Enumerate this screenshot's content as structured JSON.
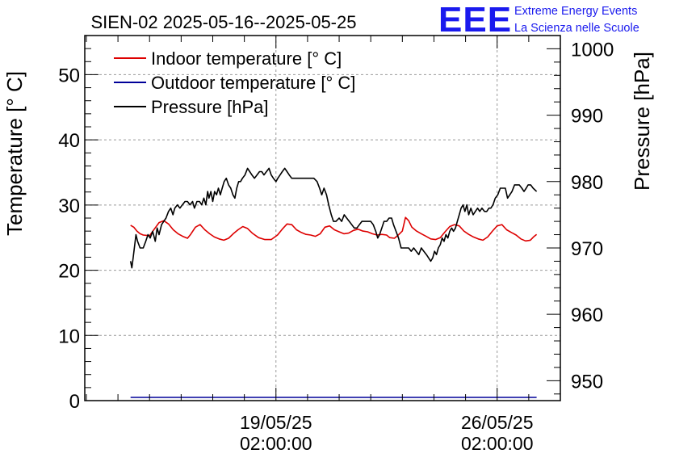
{
  "chart_data": {
    "type": "line",
    "title": "SIEN-02 2025-05-16--2025-05-25",
    "ylabel": "Temperature [° C]",
    "y2label": "Pressure [hPa]",
    "ylim": [
      0,
      56
    ],
    "y2lim": [
      947,
      1002
    ],
    "yticks": [
      0,
      10,
      20,
      30,
      40,
      50
    ],
    "y2ticks": [
      950,
      960,
      970,
      980,
      990,
      1000
    ],
    "xlim": [
      -6.05,
      9.0
    ],
    "xticks": [
      {
        "pos": 0,
        "line1": "19/05/25",
        "line2": "02:00:00"
      },
      {
        "pos": 7,
        "line1": "26/05/25",
        "line2": "02:00:00"
      }
    ],
    "x_unit": "days relative to 19/05/25 02:00:00",
    "grid": true,
    "legend_position": "top-left",
    "series": [
      {
        "name": "Indoor temperature [° C]",
        "axis": "left",
        "color": "#dd0000",
        "points": [
          [
            -4.6,
            26.9
          ],
          [
            -4.5,
            26.6
          ],
          [
            -4.4,
            26.0
          ],
          [
            -4.3,
            25.6
          ],
          [
            -4.2,
            25.4
          ],
          [
            -4.0,
            25.3
          ],
          [
            -3.85,
            26.3
          ],
          [
            -3.7,
            27.3
          ],
          [
            -3.55,
            27.6
          ],
          [
            -3.4,
            27.1
          ],
          [
            -3.25,
            26.2
          ],
          [
            -3.1,
            25.6
          ],
          [
            -2.95,
            25.2
          ],
          [
            -2.8,
            24.9
          ],
          [
            -2.7,
            25.5
          ],
          [
            -2.55,
            26.6
          ],
          [
            -2.4,
            27.0
          ],
          [
            -2.25,
            26.2
          ],
          [
            -2.1,
            25.6
          ],
          [
            -1.95,
            25.1
          ],
          [
            -1.8,
            24.8
          ],
          [
            -1.65,
            24.6
          ],
          [
            -1.5,
            24.9
          ],
          [
            -1.35,
            25.6
          ],
          [
            -1.2,
            26.2
          ],
          [
            -1.05,
            26.7
          ],
          [
            -0.9,
            26.4
          ],
          [
            -0.75,
            25.7
          ],
          [
            -0.55,
            25.0
          ],
          [
            -0.35,
            24.7
          ],
          [
            -0.15,
            24.7
          ],
          [
            0.05,
            25.4
          ],
          [
            0.2,
            26.3
          ],
          [
            0.35,
            27.1
          ],
          [
            0.5,
            27.0
          ],
          [
            0.65,
            26.2
          ],
          [
            0.8,
            25.8
          ],
          [
            0.95,
            25.5
          ],
          [
            1.1,
            25.4
          ],
          [
            1.25,
            25.2
          ],
          [
            1.4,
            25.6
          ],
          [
            1.55,
            26.6
          ],
          [
            1.7,
            26.8
          ],
          [
            1.85,
            26.2
          ],
          [
            2.0,
            25.9
          ],
          [
            2.15,
            25.6
          ],
          [
            2.3,
            25.7
          ],
          [
            2.45,
            26.1
          ],
          [
            2.6,
            26.3
          ],
          [
            2.75,
            26.0
          ],
          [
            2.9,
            25.9
          ],
          [
            3.05,
            25.6
          ],
          [
            3.2,
            25.4
          ],
          [
            3.35,
            25.5
          ],
          [
            3.5,
            25.4
          ],
          [
            3.6,
            25.0
          ],
          [
            3.75,
            24.9
          ],
          [
            3.85,
            25.3
          ],
          [
            4.0,
            26.0
          ],
          [
            4.1,
            28.1
          ],
          [
            4.2,
            27.6
          ],
          [
            4.3,
            26.6
          ],
          [
            4.45,
            26.0
          ],
          [
            4.6,
            25.6
          ],
          [
            4.75,
            25.2
          ],
          [
            4.9,
            24.8
          ],
          [
            5.05,
            24.7
          ],
          [
            5.2,
            25.0
          ],
          [
            5.35,
            25.9
          ],
          [
            5.5,
            26.7
          ],
          [
            5.65,
            27.0
          ],
          [
            5.8,
            26.8
          ],
          [
            5.95,
            26.0
          ],
          [
            6.1,
            25.5
          ],
          [
            6.25,
            25.1
          ],
          [
            6.4,
            24.8
          ],
          [
            6.55,
            24.6
          ],
          [
            6.7,
            25.1
          ],
          [
            6.85,
            26.0
          ],
          [
            7.0,
            26.8
          ],
          [
            7.15,
            27.0
          ],
          [
            7.3,
            26.2
          ],
          [
            7.45,
            25.8
          ],
          [
            7.6,
            25.4
          ],
          [
            7.75,
            24.8
          ],
          [
            7.9,
            24.5
          ],
          [
            8.05,
            24.6
          ],
          [
            8.15,
            25.1
          ],
          [
            8.25,
            25.5
          ]
        ]
      },
      {
        "name": "Outdoor temperature [° C]",
        "axis": "left",
        "color": "#000099",
        "points": [
          [
            -4.6,
            0.5
          ],
          [
            8.25,
            0.5
          ]
        ]
      },
      {
        "name": "Pressure [hPa]",
        "axis": "right",
        "color": "#000000",
        "points": [
          [
            -4.6,
            968.0
          ],
          [
            -4.56,
            967.0
          ],
          [
            -4.52,
            968.5
          ],
          [
            -4.48,
            970.0
          ],
          [
            -4.43,
            972.0
          ],
          [
            -4.38,
            971.0
          ],
          [
            -4.3,
            970.0
          ],
          [
            -4.2,
            970.0
          ],
          [
            -4.12,
            971.0
          ],
          [
            -4.05,
            972.0
          ],
          [
            -3.98,
            971.5
          ],
          [
            -3.9,
            972.5
          ],
          [
            -3.82,
            971.0
          ],
          [
            -3.76,
            973.0
          ],
          [
            -3.7,
            972.0
          ],
          [
            -3.62,
            973.5
          ],
          [
            -3.55,
            974.0
          ],
          [
            -3.48,
            974.5
          ],
          [
            -3.4,
            975.5
          ],
          [
            -3.33,
            976.0
          ],
          [
            -3.26,
            975.0
          ],
          [
            -3.2,
            976.0
          ],
          [
            -3.12,
            976.5
          ],
          [
            -3.04,
            976.0
          ],
          [
            -2.96,
            976.5
          ],
          [
            -2.88,
            977.0
          ],
          [
            -2.8,
            977.0
          ],
          [
            -2.72,
            976.5
          ],
          [
            -2.64,
            977.0
          ],
          [
            -2.58,
            976.0
          ],
          [
            -2.5,
            977.0
          ],
          [
            -2.42,
            977.0
          ],
          [
            -2.35,
            976.5
          ],
          [
            -2.28,
            977.5
          ],
          [
            -2.22,
            976.5
          ],
          [
            -2.16,
            978.5
          ],
          [
            -2.12,
            977.5
          ],
          [
            -2.06,
            978.5
          ],
          [
            -2.0,
            977.0
          ],
          [
            -1.94,
            978.5
          ],
          [
            -1.88,
            978.0
          ],
          [
            -1.82,
            979.0
          ],
          [
            -1.76,
            978.0
          ],
          [
            -1.7,
            979.0
          ],
          [
            -1.64,
            980.0
          ],
          [
            -1.57,
            980.5
          ],
          [
            -1.5,
            979.5
          ],
          [
            -1.43,
            979.0
          ],
          [
            -1.36,
            978.0
          ],
          [
            -1.3,
            977.5
          ],
          [
            -1.24,
            979.0
          ],
          [
            -1.18,
            980.0
          ],
          [
            -1.12,
            980.0
          ],
          [
            -1.06,
            980.5
          ],
          [
            -0.98,
            981.0
          ],
          [
            -0.9,
            982.0
          ],
          [
            -0.83,
            981.5
          ],
          [
            -0.76,
            981.0
          ],
          [
            -0.68,
            980.5
          ],
          [
            -0.6,
            981.0
          ],
          [
            -0.52,
            981.5
          ],
          [
            -0.45,
            981.5
          ],
          [
            -0.38,
            981.0
          ],
          [
            -0.3,
            981.5
          ],
          [
            -0.22,
            982.0
          ],
          [
            -0.15,
            981.0
          ],
          [
            -0.08,
            980.5
          ],
          [
            0.0,
            980.0
          ],
          [
            0.06,
            980.5
          ],
          [
            0.13,
            981.0
          ],
          [
            0.2,
            981.5
          ],
          [
            0.28,
            982.0
          ],
          [
            0.35,
            981.5
          ],
          [
            0.42,
            981.0
          ],
          [
            0.5,
            980.5
          ],
          [
            0.6,
            980.5
          ],
          [
            0.75,
            980.5
          ],
          [
            0.9,
            980.5
          ],
          [
            1.05,
            980.5
          ],
          [
            1.2,
            980.5
          ],
          [
            1.3,
            980.0
          ],
          [
            1.38,
            979.0
          ],
          [
            1.45,
            978.0
          ],
          [
            1.52,
            979.0
          ],
          [
            1.6,
            978.0
          ],
          [
            1.67,
            976.5
          ],
          [
            1.75,
            975.0
          ],
          [
            1.82,
            974.0
          ],
          [
            1.9,
            974.0
          ],
          [
            2.0,
            974.5
          ],
          [
            2.08,
            974.0
          ],
          [
            2.16,
            975.0
          ],
          [
            2.24,
            974.5
          ],
          [
            2.32,
            974.0
          ],
          [
            2.4,
            973.5
          ],
          [
            2.48,
            973.0
          ],
          [
            2.56,
            973.0
          ],
          [
            2.64,
            973.5
          ],
          [
            2.72,
            974.0
          ],
          [
            2.8,
            974.0
          ],
          [
            2.9,
            974.0
          ],
          [
            3.0,
            974.0
          ],
          [
            3.08,
            973.5
          ],
          [
            3.16,
            972.5
          ],
          [
            3.22,
            971.5
          ],
          [
            3.28,
            972.0
          ],
          [
            3.35,
            973.0
          ],
          [
            3.42,
            974.0
          ],
          [
            3.5,
            974.0
          ],
          [
            3.58,
            974.5
          ],
          [
            3.66,
            974.5
          ],
          [
            3.72,
            973.5
          ],
          [
            3.8,
            972.5
          ],
          [
            3.88,
            971.5
          ],
          [
            3.96,
            970.0
          ],
          [
            4.04,
            970.0
          ],
          [
            4.12,
            970.0
          ],
          [
            4.2,
            970.0
          ],
          [
            4.28,
            969.5
          ],
          [
            4.36,
            970.0
          ],
          [
            4.44,
            969.5
          ],
          [
            4.52,
            969.0
          ],
          [
            4.6,
            970.0
          ],
          [
            4.68,
            969.5
          ],
          [
            4.76,
            969.0
          ],
          [
            4.83,
            968.5
          ],
          [
            4.9,
            968.0
          ],
          [
            4.96,
            968.5
          ],
          [
            5.02,
            969.5
          ],
          [
            5.08,
            969.0
          ],
          [
            5.14,
            970.0
          ],
          [
            5.2,
            970.5
          ],
          [
            5.26,
            971.5
          ],
          [
            5.32,
            971.0
          ],
          [
            5.38,
            972.0
          ],
          [
            5.44,
            971.5
          ],
          [
            5.5,
            972.5
          ],
          [
            5.56,
            973.0
          ],
          [
            5.62,
            972.5
          ],
          [
            5.68,
            973.0
          ],
          [
            5.74,
            974.0
          ],
          [
            5.8,
            975.0
          ],
          [
            5.86,
            976.0
          ],
          [
            5.92,
            976.5
          ],
          [
            5.98,
            975.5
          ],
          [
            6.04,
            976.5
          ],
          [
            6.1,
            975.0
          ],
          [
            6.17,
            976.0
          ],
          [
            6.24,
            975.0
          ],
          [
            6.31,
            975.5
          ],
          [
            6.38,
            976.0
          ],
          [
            6.45,
            975.5
          ],
          [
            6.52,
            976.0
          ],
          [
            6.6,
            975.5
          ],
          [
            6.67,
            975.5
          ],
          [
            6.74,
            976.0
          ],
          [
            6.8,
            976.0
          ],
          [
            6.87,
            976.5
          ],
          [
            6.94,
            977.5
          ],
          [
            7.02,
            978.0
          ],
          [
            7.1,
            979.0
          ],
          [
            7.18,
            979.0
          ],
          [
            7.26,
            979.0
          ],
          [
            7.33,
            977.5
          ],
          [
            7.4,
            978.0
          ],
          [
            7.47,
            978.5
          ],
          [
            7.55,
            979.5
          ],
          [
            7.62,
            979.5
          ],
          [
            7.7,
            979.5
          ],
          [
            7.78,
            979.0
          ],
          [
            7.85,
            978.5
          ],
          [
            7.92,
            979.0
          ],
          [
            7.98,
            979.5
          ],
          [
            8.06,
            979.5
          ],
          [
            8.14,
            979.0
          ],
          [
            8.25,
            978.5
          ]
        ]
      }
    ]
  },
  "logo": {
    "mark": "EEE",
    "line1": "Extreme Energy Events",
    "line2": "La Scienza nelle Scuole",
    "color": "#1a1aee"
  },
  "colors": {
    "frame": "#000000",
    "grid": "#999999",
    "background": "#ffffff"
  }
}
